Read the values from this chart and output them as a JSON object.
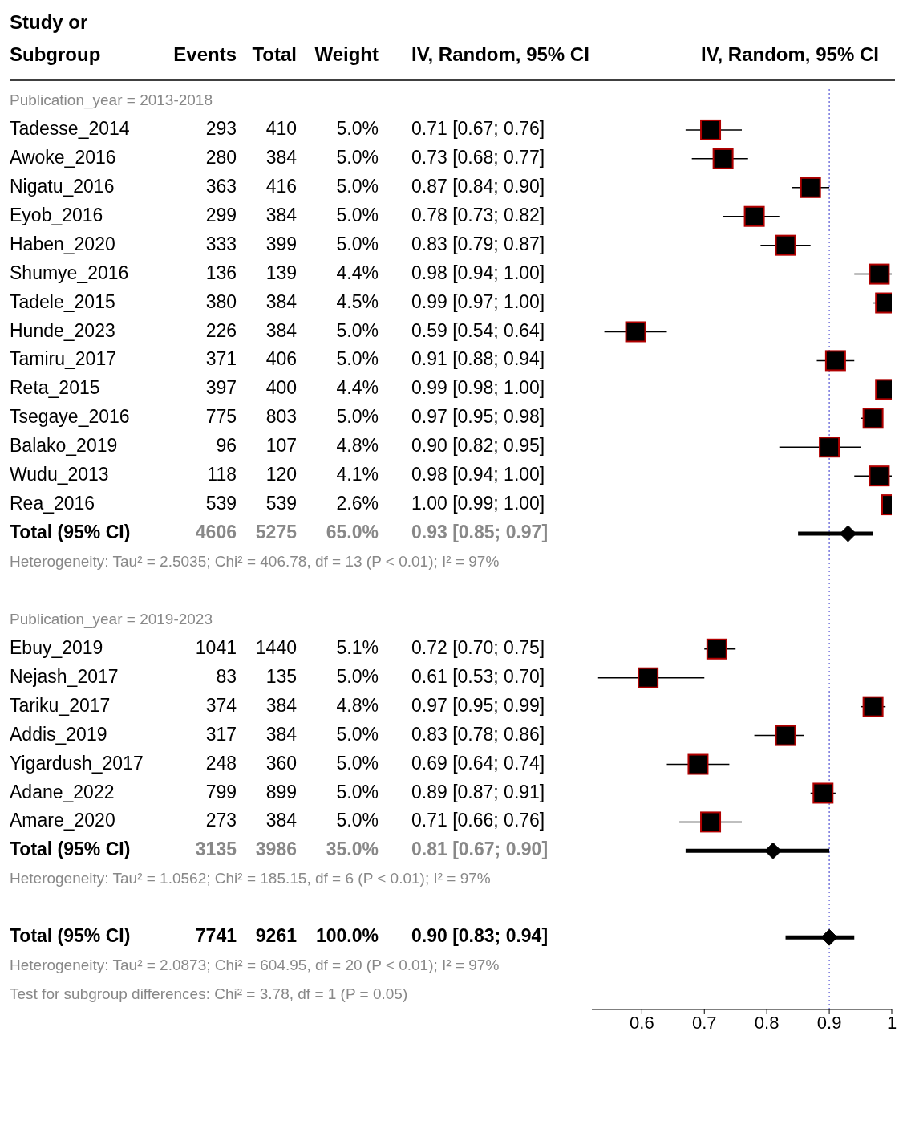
{
  "chart_data": [
    {
      "type": "other",
      "ylabel": "Study or Subgroup",
      "categories": [
        "Publication_year = 2013-2018",
        "Tadesse_2014",
        "Awoke_2016",
        "Nigatu_2016",
        "Eyob_2016",
        "Haben_2020",
        "Shumye_2016",
        "Tadele_2015",
        "Hunde_2023",
        "Tamiru_2017",
        "Reta_2015",
        "Tsegaye_2016",
        "Balako_2019",
        "Wudu_2013",
        "Rea_2016",
        "Total (95% CI)",
        "Heterogeneity: Tau² = 2.5035; Chi² = 406.78, df = 13 (P < 0.01); I² = 97%",
        null,
        "Publication_year = 2019-2023",
        "Ebuy_2019",
        "Nejash_2017",
        "Tariku_2017",
        "Addis_2019",
        "Yigardush_2017",
        "Adane_2022",
        "Amare_2020",
        "Total (95% CI)",
        "Heterogeneity: Tau² = 1.0562; Chi² = 185.15, df = 6 (P < 0.01); I² = 97%",
        null,
        "Total (95% CI)",
        "Heterogeneity: Tau² = 2.0873; Chi² = 604.95, df = 20 (P < 0.01); I² = 97%",
        "Test for subgroup differences: Chi² = 3.78, df = 1 (P = 0.05)"
      ],
      "series": [
        {
          "name": "Events",
          "values": [
            null,
            293,
            280,
            363,
            299,
            333,
            136,
            380,
            226,
            371,
            397,
            775,
            96,
            118,
            539,
            4606,
            null,
            null,
            null,
            1041,
            83,
            374,
            317,
            248,
            799,
            273,
            3135,
            null,
            null,
            7741,
            null,
            null
          ],
          "value_labels": [
            null,
            "293",
            "280",
            "363",
            "299",
            "333",
            "136",
            "380",
            "226",
            "371",
            "397",
            "775",
            "96",
            "118",
            "539",
            "4606",
            null,
            null,
            null,
            "1041",
            "83",
            "374",
            "317",
            "248",
            "799",
            "273",
            "3135",
            null,
            null,
            "7741",
            null,
            null
          ]
        },
        {
          "name": "Total",
          "values": [
            null,
            410,
            384,
            416,
            384,
            399,
            139,
            384,
            384,
            406,
            400,
            803,
            107,
            120,
            539,
            5275,
            null,
            null,
            null,
            1440,
            135,
            384,
            384,
            360,
            899,
            384,
            3986,
            null,
            null,
            9261,
            null,
            null
          ],
          "value_labels": [
            null,
            "410",
            "384",
            "416",
            "384",
            "399",
            "139",
            "384",
            "384",
            "406",
            "400",
            "803",
            "107",
            "120",
            "539",
            "5275",
            null,
            null,
            null,
            "1440",
            "135",
            "384",
            "384",
            "360",
            "899",
            "384",
            "3986",
            null,
            null,
            "9261",
            null,
            null
          ]
        },
        {
          "name": "Weight",
          "values": [
            null,
            5.0,
            5.0,
            5.0,
            5.0,
            5.0,
            4.4,
            4.5,
            5.0,
            5.0,
            4.4,
            5.0,
            4.8,
            4.1,
            2.6,
            65.0,
            null,
            null,
            null,
            5.1,
            5.0,
            4.8,
            5.0,
            5.0,
            5.0,
            5.0,
            35.0,
            null,
            null,
            100.0,
            null,
            null
          ],
          "value_labels": [
            null,
            "5.0%",
            "5.0%",
            "5.0%",
            "5.0%",
            "5.0%",
            "4.4%",
            "4.5%",
            "5.0%",
            "5.0%",
            "4.4%",
            "5.0%",
            "4.8%",
            "4.1%",
            "2.6%",
            "65.0%",
            null,
            null,
            null,
            "5.1%",
            "5.0%",
            "4.8%",
            "5.0%",
            "5.0%",
            "5.0%",
            "5.0%",
            "35.0%",
            null,
            null,
            "100.0%",
            null,
            null
          ]
        },
        {
          "name": "IV, Random, 95% CI",
          "values": [
            null,
            0.71,
            0.73,
            0.87,
            0.78,
            0.83,
            0.98,
            0.99,
            0.59,
            0.91,
            0.99,
            0.97,
            0.9,
            0.98,
            1.0,
            0.93,
            null,
            null,
            null,
            0.72,
            0.61,
            0.97,
            0.83,
            0.69,
            0.89,
            0.71,
            0.81,
            null,
            null,
            0.9,
            null,
            null
          ],
          "value_labels": [
            null,
            "0.71 [0.67; 0.76]",
            "0.73 [0.68; 0.77]",
            "0.87 [0.84; 0.90]",
            "0.78 [0.73; 0.82]",
            "0.83 [0.79; 0.87]",
            "0.98 [0.94; 1.00]",
            "0.99 [0.97; 1.00]",
            "0.59 [0.54; 0.64]",
            "0.91 [0.88; 0.94]",
            "0.99 [0.98; 1.00]",
            "0.97 [0.95; 0.98]",
            "0.90 [0.82; 0.95]",
            "0.98 [0.94; 1.00]",
            "1.00 [0.99; 1.00]",
            "0.93 [0.85; 0.97]",
            null,
            null,
            null,
            "0.72 [0.70; 0.75]",
            "0.61 [0.53; 0.70]",
            "0.97 [0.95; 0.99]",
            "0.83 [0.78; 0.86]",
            "0.69 [0.64; 0.74]",
            "0.89 [0.87; 0.91]",
            "0.71 [0.66; 0.76]",
            "0.81 [0.67; 0.90]",
            null,
            null,
            "0.90 [0.83; 0.94]",
            null,
            null
          ]
        }
      ]
    },
    {
      "type": "scatter",
      "orientation": "horizontal",
      "xlabel": "IV, Random, 95% CI",
      "tick_labels": "x",
      "categories": [
        null,
        null,
        null,
        null,
        null,
        null,
        null,
        null,
        null,
        null,
        null,
        null,
        null,
        null,
        null,
        null,
        null,
        null,
        null,
        null,
        null,
        null,
        null,
        null,
        null,
        null,
        null,
        null,
        null,
        null,
        null,
        null
      ],
      "series": [
        {
          "marker": "square",
          "color": "#000000",
          "values": [
            null,
            0.71,
            0.73,
            0.87,
            0.78,
            0.83,
            0.98,
            0.99,
            0.59,
            0.91,
            0.99,
            0.97,
            0.9,
            0.98,
            1.0,
            null,
            null,
            null,
            null,
            0.72,
            0.61,
            0.97,
            0.83,
            0.69,
            0.89,
            0.71,
            null,
            null,
            null,
            null,
            null,
            null
          ],
          "errors": [
            null,
            [
              0.67,
              0.76
            ],
            [
              0.68,
              0.77
            ],
            [
              0.84,
              0.9
            ],
            [
              0.73,
              0.82
            ],
            [
              0.79,
              0.87
            ],
            [
              0.94,
              1.0
            ],
            [
              0.97,
              1.0
            ],
            [
              0.54,
              0.64
            ],
            [
              0.88,
              0.94
            ],
            [
              0.98,
              1.0
            ],
            [
              0.95,
              0.98
            ],
            [
              0.82,
              0.95
            ],
            [
              0.94,
              1.0
            ],
            null,
            null,
            null,
            null,
            null,
            [
              0.7,
              0.75
            ],
            [
              0.53,
              0.7
            ],
            [
              0.95,
              0.99
            ],
            [
              0.78,
              0.86
            ],
            [
              0.64,
              0.74
            ],
            [
              0.87,
              0.91
            ],
            [
              0.66,
              0.76
            ],
            null,
            null,
            null,
            null,
            null,
            null
          ]
        },
        {
          "marker": "diamond",
          "color": "#000000",
          "values": [
            null,
            null,
            null,
            null,
            null,
            null,
            null,
            null,
            null,
            null,
            null,
            null,
            null,
            null,
            null,
            0.93,
            null,
            null,
            null,
            null,
            null,
            null,
            null,
            null,
            null,
            null,
            0.81,
            null,
            null,
            0.9,
            null,
            null
          ],
          "errors": [
            null,
            null,
            null,
            null,
            null,
            null,
            null,
            null,
            null,
            null,
            null,
            null,
            null,
            null,
            null,
            [
              0.85,
              0.97
            ],
            null,
            null,
            null,
            null,
            null,
            null,
            null,
            null,
            null,
            null,
            [
              0.67,
              0.9
            ],
            null,
            null,
            [
              0.83,
              0.94
            ],
            null,
            null
          ]
        }
      ],
      "xlim": [
        0.52,
        1.0
      ],
      "xticks": [
        0.6,
        0.7,
        0.8,
        0.9,
        1
      ],
      "ref_lines": [
        {
          "axis": "x",
          "value": 0.9,
          "color": "#3333cc",
          "line_style": "dotted"
        }
      ]
    }
  ]
}
